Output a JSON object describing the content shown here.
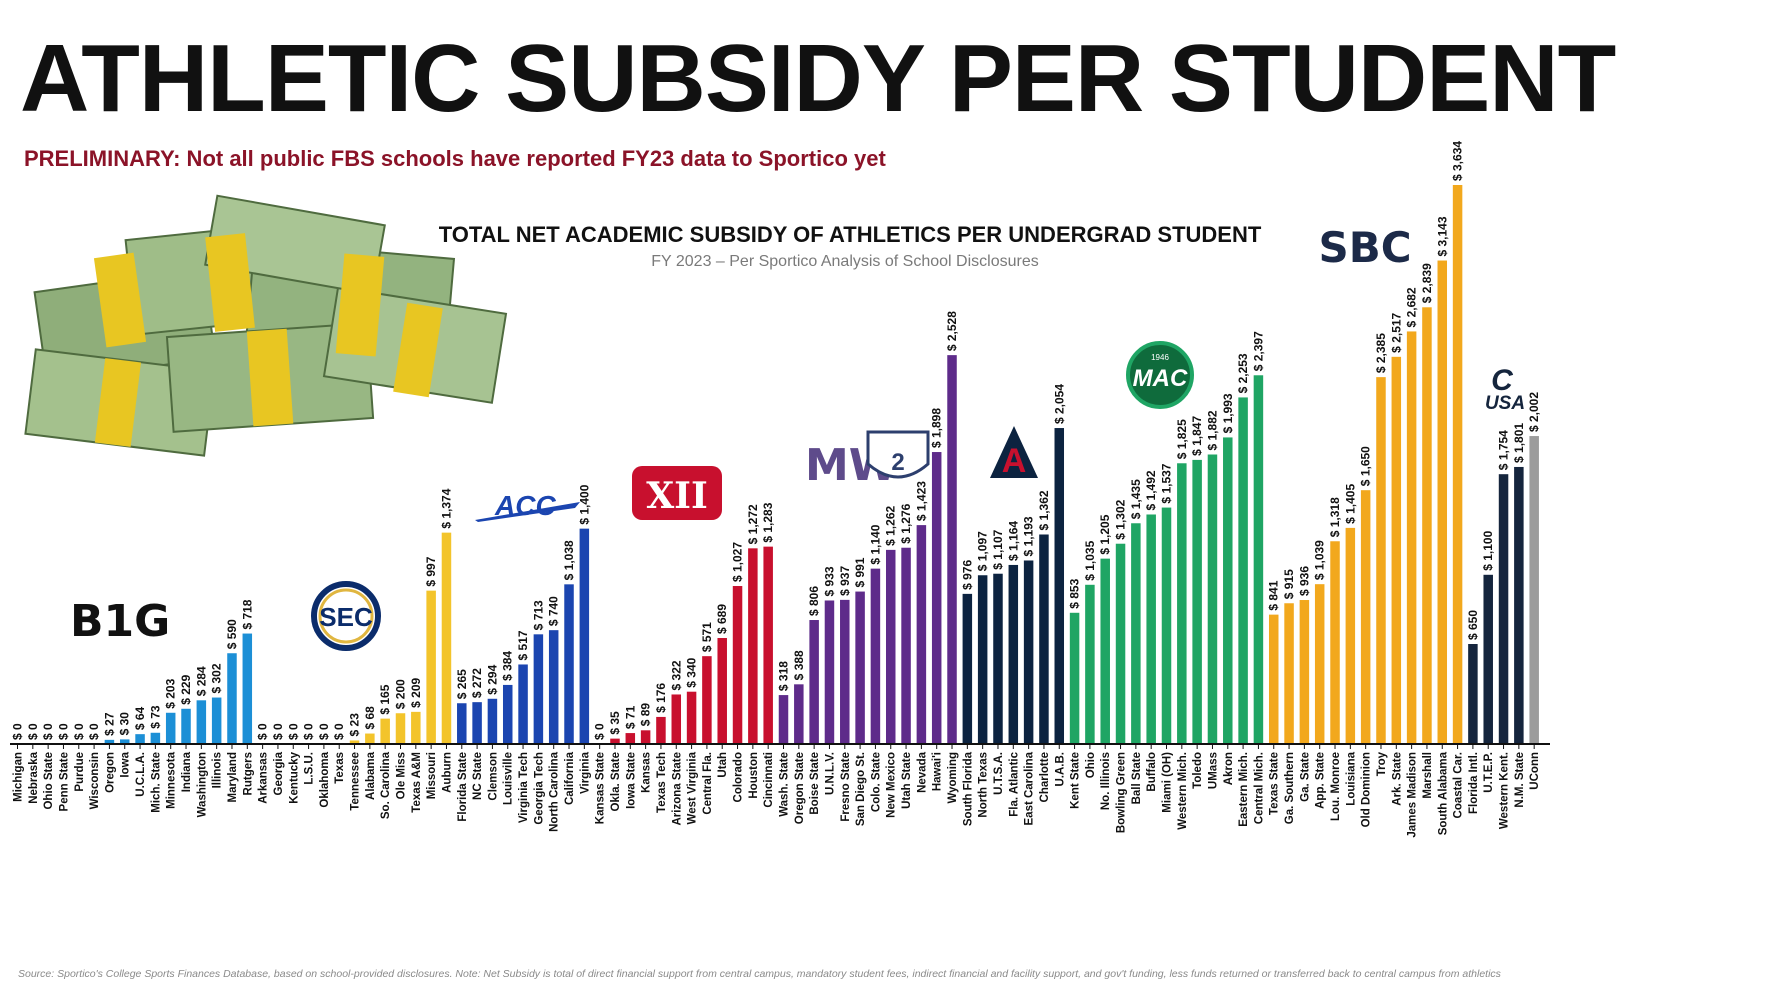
{
  "title": "ATHLETIC SUBSIDY PER STUDENT",
  "preliminary_note": "PRELIMINARY:  Not all public FBS schools have reported FY23 data to Sportico yet",
  "footer": "Source:  Sportico's College Sports Finances Database, based on school-provided disclosures.  Note:  Net Subsidy is total of direct financial support from central campus, mandatory student fees, indirect financial and facility support, and gov't funding, less funds returned or transferred back to central campus from athletics",
  "logos": {
    "big_ten": "B1G",
    "sec": "SEC",
    "acc": "ACC",
    "big12": "XII",
    "mwc": "MW",
    "pac2": "2",
    "aac": "A",
    "mac": "MAC",
    "mac_year": "1946",
    "sbc": "SBC",
    "cusa_c": "C",
    "cusa": "USA"
  },
  "chart_data": {
    "type": "bar",
    "title": "TOTAL NET ACADEMIC SUBSIDY OF ATHLETICS PER UNDERGRAD STUDENT",
    "subtitle": "FY 2023 – Per Sportico Analysis of School Disclosures",
    "value_prefix": "$ ",
    "ylim": [
      0,
      3634
    ],
    "grid": false,
    "conferences": [
      {
        "key": "big10",
        "color": "#1c8fd6",
        "schools": [
          "Michigan",
          "Nebraska",
          "Ohio State",
          "Penn State",
          "Purdue",
          "Wisconsin",
          "Oregon",
          "Iowa",
          "U.C.L.A.",
          "Mich. State",
          "Minnesota",
          "Indiana",
          "Washington",
          "Illinois",
          "Maryland",
          "Rutgers"
        ],
        "values": [
          0,
          0,
          0,
          0,
          0,
          0,
          27,
          30,
          64,
          73,
          203,
          229,
          284,
          302,
          590,
          718
        ]
      },
      {
        "key": "sec",
        "color": "#f3c42b",
        "schools": [
          "Arkansas",
          "Georgia",
          "Kentucky",
          "L.S.U.",
          "Oklahoma",
          "Texas",
          "Tennessee",
          "Alabama",
          "So. Carolina",
          "Ole Miss",
          "Texas A&M",
          "Missouri",
          "Auburn"
        ],
        "values": [
          0,
          0,
          0,
          0,
          0,
          0,
          23,
          68,
          165,
          200,
          209,
          997,
          1374
        ]
      },
      {
        "key": "acc",
        "color": "#1b45b0",
        "schools": [
          "Florida State",
          "NC State",
          "Clemson",
          "Louisville",
          "Virginia Tech",
          "Georgia Tech",
          "North Carolina",
          "California",
          "Virginia"
        ],
        "values": [
          265,
          272,
          294,
          384,
          517,
          713,
          740,
          1038,
          1400
        ]
      },
      {
        "key": "big12",
        "color": "#c8102e",
        "schools": [
          "Kansas State",
          "Okla. State",
          "Iowa State",
          "Kansas",
          "Texas Tech",
          "Arizona State",
          "West Virginia",
          "Central Fla.",
          "Utah",
          "Colorado",
          "Houston",
          "Cincinnati"
        ],
        "values": [
          0,
          35,
          71,
          89,
          176,
          322,
          340,
          571,
          689,
          1027,
          1272,
          1283
        ]
      },
      {
        "key": "mwc_pac",
        "color": "#5e2b8a",
        "schools": [
          "Wash. State",
          "Oregon State",
          "Boise State",
          "U.N.L.V.",
          "Fresno State",
          "San Diego St.",
          "Colo. State",
          "New Mexico",
          "Utah State",
          "Nevada",
          "Hawai'i",
          "Wyoming"
        ],
        "values": [
          318,
          388,
          806,
          933,
          937,
          991,
          1140,
          1262,
          1276,
          1423,
          1898,
          2528
        ]
      },
      {
        "key": "aac",
        "color": "#0c2340",
        "schools": [
          "South Florida",
          "North Texas",
          "U.T.S.A.",
          "Fla. Atlantic",
          "East Carolina",
          "Charlotte",
          "U.A.B."
        ],
        "values": [
          976,
          1097,
          1107,
          1164,
          1193,
          1362,
          2054
        ]
      },
      {
        "key": "mac",
        "color": "#1fa564",
        "schools": [
          "Kent State",
          "Ohio",
          "No. Illinois",
          "Bowling Green",
          "Ball State",
          "Buffalo",
          "Miami (OH)",
          "Western Mich.",
          "Toledo",
          "UMass",
          "Akron",
          "Eastern Mich.",
          "Central Mich."
        ],
        "values": [
          853,
          1035,
          1205,
          1302,
          1435,
          1492,
          1537,
          1825,
          1847,
          1882,
          1993,
          2253,
          2397
        ]
      },
      {
        "key": "sbc",
        "color": "#f2a81d",
        "schools": [
          "Texas State",
          "Ga. Southern",
          "Ga. State",
          "App. State",
          "Lou. Monroe",
          "Louisiana",
          "Old Dominion",
          "Troy",
          "Ark. State",
          "James Madison",
          "Marshall",
          "South Alabama",
          "Coastal Car."
        ],
        "values": [
          841,
          915,
          936,
          1039,
          1318,
          1405,
          1650,
          2385,
          2517,
          2682,
          2839,
          3143,
          3634
        ]
      },
      {
        "key": "cusa",
        "color": "#15253d",
        "schools": [
          "Florida Intl.",
          "U.T.E.P.",
          "Western Kent.",
          "N.M. State"
        ],
        "values": [
          650,
          1100,
          1754,
          1801
        ]
      },
      {
        "key": "independent",
        "color": "#9c9c9c",
        "schools": [
          "UConn"
        ],
        "values": [
          2002
        ]
      }
    ]
  }
}
